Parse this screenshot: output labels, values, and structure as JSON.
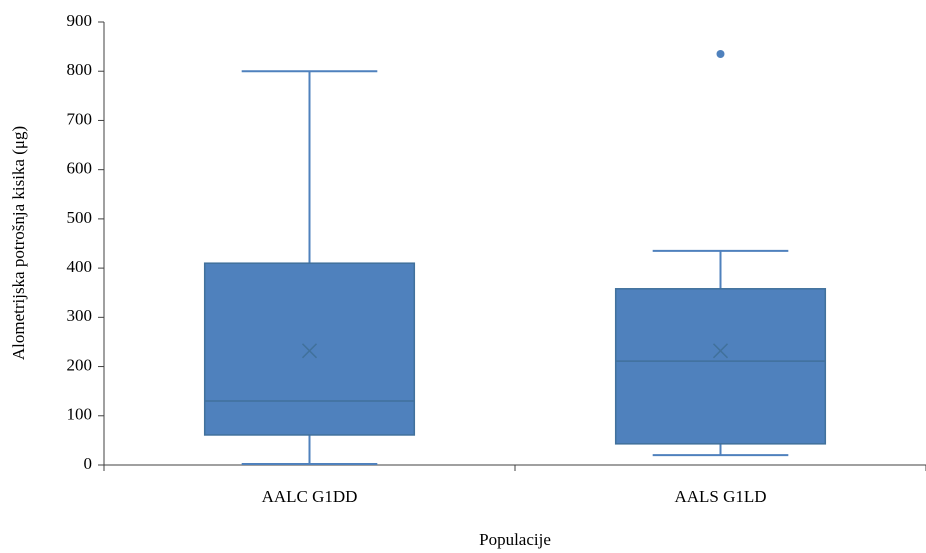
{
  "chart_data": {
    "type": "box",
    "xlabel": "Populacije",
    "ylabel": "Alometrijska potrošnja kisika (μg)",
    "categories": [
      "AALC G1DD",
      "AALS G1LD"
    ],
    "color": "#4f81bd",
    "boxes": [
      {
        "min": 2,
        "q1": 61,
        "median": 130,
        "q3": 410,
        "max": 800,
        "mean": 232,
        "outliers": []
      },
      {
        "min": 20,
        "q1": 43,
        "median": 211,
        "q3": 358,
        "max": 435,
        "mean": 232,
        "outliers": [
          835
        ]
      }
    ],
    "ylim": [
      0,
      900
    ],
    "yticks": [
      0,
      100,
      200,
      300,
      400,
      500,
      600,
      700,
      800,
      900
    ],
    "grid": false
  }
}
